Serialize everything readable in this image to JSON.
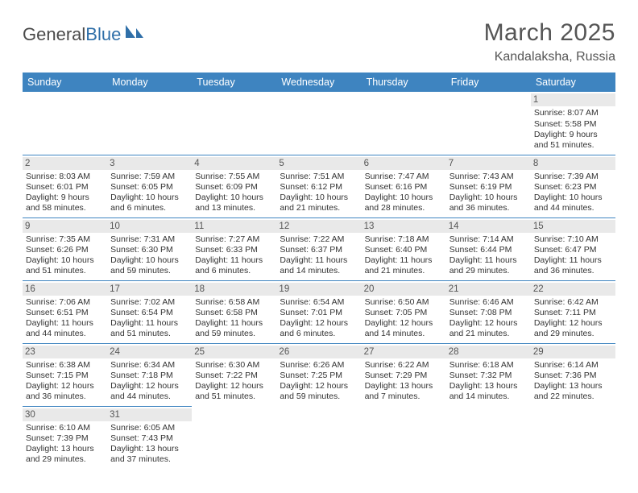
{
  "logo": {
    "part1": "General",
    "part2": "Blue"
  },
  "title": "March 2025",
  "location": "Kandalaksha, Russia",
  "colors": {
    "header_bg": "#3e84c0",
    "header_text": "#ffffff",
    "daynum_bg": "#e9e9e9",
    "border": "#3e84c0",
    "text": "#333333"
  },
  "weekdays": [
    "Sunday",
    "Monday",
    "Tuesday",
    "Wednesday",
    "Thursday",
    "Friday",
    "Saturday"
  ],
  "weeks": [
    [
      null,
      null,
      null,
      null,
      null,
      null,
      {
        "n": "1",
        "sr": "Sunrise: 8:07 AM",
        "ss": "Sunset: 5:58 PM",
        "dl1": "Daylight: 9 hours",
        "dl2": "and 51 minutes."
      }
    ],
    [
      {
        "n": "2",
        "sr": "Sunrise: 8:03 AM",
        "ss": "Sunset: 6:01 PM",
        "dl1": "Daylight: 9 hours",
        "dl2": "and 58 minutes."
      },
      {
        "n": "3",
        "sr": "Sunrise: 7:59 AM",
        "ss": "Sunset: 6:05 PM",
        "dl1": "Daylight: 10 hours",
        "dl2": "and 6 minutes."
      },
      {
        "n": "4",
        "sr": "Sunrise: 7:55 AM",
        "ss": "Sunset: 6:09 PM",
        "dl1": "Daylight: 10 hours",
        "dl2": "and 13 minutes."
      },
      {
        "n": "5",
        "sr": "Sunrise: 7:51 AM",
        "ss": "Sunset: 6:12 PM",
        "dl1": "Daylight: 10 hours",
        "dl2": "and 21 minutes."
      },
      {
        "n": "6",
        "sr": "Sunrise: 7:47 AM",
        "ss": "Sunset: 6:16 PM",
        "dl1": "Daylight: 10 hours",
        "dl2": "and 28 minutes."
      },
      {
        "n": "7",
        "sr": "Sunrise: 7:43 AM",
        "ss": "Sunset: 6:19 PM",
        "dl1": "Daylight: 10 hours",
        "dl2": "and 36 minutes."
      },
      {
        "n": "8",
        "sr": "Sunrise: 7:39 AM",
        "ss": "Sunset: 6:23 PM",
        "dl1": "Daylight: 10 hours",
        "dl2": "and 44 minutes."
      }
    ],
    [
      {
        "n": "9",
        "sr": "Sunrise: 7:35 AM",
        "ss": "Sunset: 6:26 PM",
        "dl1": "Daylight: 10 hours",
        "dl2": "and 51 minutes."
      },
      {
        "n": "10",
        "sr": "Sunrise: 7:31 AM",
        "ss": "Sunset: 6:30 PM",
        "dl1": "Daylight: 10 hours",
        "dl2": "and 59 minutes."
      },
      {
        "n": "11",
        "sr": "Sunrise: 7:27 AM",
        "ss": "Sunset: 6:33 PM",
        "dl1": "Daylight: 11 hours",
        "dl2": "and 6 minutes."
      },
      {
        "n": "12",
        "sr": "Sunrise: 7:22 AM",
        "ss": "Sunset: 6:37 PM",
        "dl1": "Daylight: 11 hours",
        "dl2": "and 14 minutes."
      },
      {
        "n": "13",
        "sr": "Sunrise: 7:18 AM",
        "ss": "Sunset: 6:40 PM",
        "dl1": "Daylight: 11 hours",
        "dl2": "and 21 minutes."
      },
      {
        "n": "14",
        "sr": "Sunrise: 7:14 AM",
        "ss": "Sunset: 6:44 PM",
        "dl1": "Daylight: 11 hours",
        "dl2": "and 29 minutes."
      },
      {
        "n": "15",
        "sr": "Sunrise: 7:10 AM",
        "ss": "Sunset: 6:47 PM",
        "dl1": "Daylight: 11 hours",
        "dl2": "and 36 minutes."
      }
    ],
    [
      {
        "n": "16",
        "sr": "Sunrise: 7:06 AM",
        "ss": "Sunset: 6:51 PM",
        "dl1": "Daylight: 11 hours",
        "dl2": "and 44 minutes."
      },
      {
        "n": "17",
        "sr": "Sunrise: 7:02 AM",
        "ss": "Sunset: 6:54 PM",
        "dl1": "Daylight: 11 hours",
        "dl2": "and 51 minutes."
      },
      {
        "n": "18",
        "sr": "Sunrise: 6:58 AM",
        "ss": "Sunset: 6:58 PM",
        "dl1": "Daylight: 11 hours",
        "dl2": "and 59 minutes."
      },
      {
        "n": "19",
        "sr": "Sunrise: 6:54 AM",
        "ss": "Sunset: 7:01 PM",
        "dl1": "Daylight: 12 hours",
        "dl2": "and 6 minutes."
      },
      {
        "n": "20",
        "sr": "Sunrise: 6:50 AM",
        "ss": "Sunset: 7:05 PM",
        "dl1": "Daylight: 12 hours",
        "dl2": "and 14 minutes."
      },
      {
        "n": "21",
        "sr": "Sunrise: 6:46 AM",
        "ss": "Sunset: 7:08 PM",
        "dl1": "Daylight: 12 hours",
        "dl2": "and 21 minutes."
      },
      {
        "n": "22",
        "sr": "Sunrise: 6:42 AM",
        "ss": "Sunset: 7:11 PM",
        "dl1": "Daylight: 12 hours",
        "dl2": "and 29 minutes."
      }
    ],
    [
      {
        "n": "23",
        "sr": "Sunrise: 6:38 AM",
        "ss": "Sunset: 7:15 PM",
        "dl1": "Daylight: 12 hours",
        "dl2": "and 36 minutes."
      },
      {
        "n": "24",
        "sr": "Sunrise: 6:34 AM",
        "ss": "Sunset: 7:18 PM",
        "dl1": "Daylight: 12 hours",
        "dl2": "and 44 minutes."
      },
      {
        "n": "25",
        "sr": "Sunrise: 6:30 AM",
        "ss": "Sunset: 7:22 PM",
        "dl1": "Daylight: 12 hours",
        "dl2": "and 51 minutes."
      },
      {
        "n": "26",
        "sr": "Sunrise: 6:26 AM",
        "ss": "Sunset: 7:25 PM",
        "dl1": "Daylight: 12 hours",
        "dl2": "and 59 minutes."
      },
      {
        "n": "27",
        "sr": "Sunrise: 6:22 AM",
        "ss": "Sunset: 7:29 PM",
        "dl1": "Daylight: 13 hours",
        "dl2": "and 7 minutes."
      },
      {
        "n": "28",
        "sr": "Sunrise: 6:18 AM",
        "ss": "Sunset: 7:32 PM",
        "dl1": "Daylight: 13 hours",
        "dl2": "and 14 minutes."
      },
      {
        "n": "29",
        "sr": "Sunrise: 6:14 AM",
        "ss": "Sunset: 7:36 PM",
        "dl1": "Daylight: 13 hours",
        "dl2": "and 22 minutes."
      }
    ],
    [
      {
        "n": "30",
        "sr": "Sunrise: 6:10 AM",
        "ss": "Sunset: 7:39 PM",
        "dl1": "Daylight: 13 hours",
        "dl2": "and 29 minutes."
      },
      {
        "n": "31",
        "sr": "Sunrise: 6:05 AM",
        "ss": "Sunset: 7:43 PM",
        "dl1": "Daylight: 13 hours",
        "dl2": "and 37 minutes."
      },
      null,
      null,
      null,
      null,
      null
    ]
  ]
}
